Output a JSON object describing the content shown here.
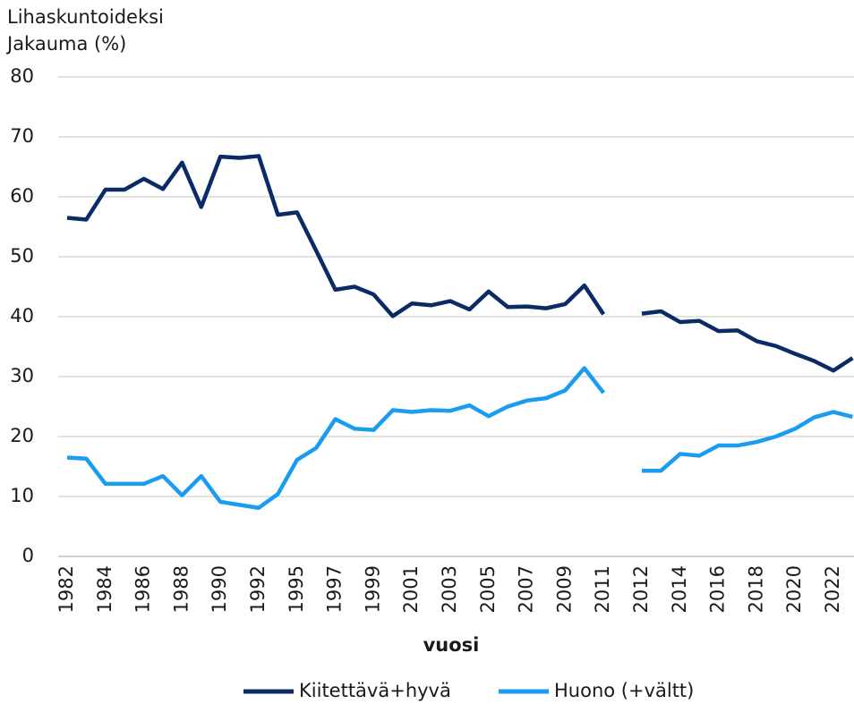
{
  "chart_data": {
    "type": "line",
    "y_title": [
      "Lihaskuntoideksi",
      "Jakauma (%)"
    ],
    "x_label": "vuosi",
    "categories": [
      1982,
      null,
      1984,
      null,
      1986,
      null,
      1988,
      null,
      1990,
      null,
      1992,
      null,
      1995,
      null,
      1997,
      null,
      1999,
      null,
      2001,
      null,
      2003,
      null,
      2005,
      null,
      2007,
      null,
      2009,
      null,
      2011,
      null,
      2012,
      null,
      2014,
      null,
      2016,
      null,
      2018,
      null,
      2020,
      null,
      2022,
      null
    ],
    "series": [
      {
        "name": "Kiitettävä+hyvä",
        "color": "#0b2b66",
        "values": [
          56.5,
          56.2,
          61.2,
          61.2,
          63,
          61.3,
          65.7,
          58.3,
          66.7,
          66.5,
          66.8,
          57,
          57.4,
          51,
          44.5,
          45,
          43.7,
          40.1,
          42.2,
          41.9,
          42.6,
          41.2,
          44.2,
          41.6,
          41.7,
          41.4,
          42.1,
          45.2,
          40.4,
          null,
          40.5,
          40.9,
          39.1,
          39.3,
          37.6,
          37.7,
          35.9,
          35.1,
          33.8,
          32.6,
          31,
          33.1
        ]
      },
      {
        "name": "Huono (+vältt)",
        "color": "#1a9cf0",
        "values": [
          16.5,
          16.3,
          12.1,
          12.1,
          12.1,
          13.4,
          10.2,
          13.4,
          9.1,
          8.6,
          8.1,
          10.4,
          16.1,
          18.1,
          22.9,
          21.3,
          21.1,
          24.4,
          24.1,
          24.4,
          24.3,
          25.2,
          23.4,
          25,
          26,
          26.4,
          27.7,
          31.4,
          27.3,
          null,
          14.3,
          14.3,
          17.1,
          16.8,
          18.5,
          18.5,
          19.1,
          20,
          21.3,
          23.2,
          24.1,
          23.3
        ]
      }
    ],
    "ylim": [
      0,
      80
    ],
    "yticks": [
      0,
      10,
      20,
      30,
      40,
      50,
      60,
      70,
      80
    ],
    "grid": true,
    "legend": "bottom"
  }
}
